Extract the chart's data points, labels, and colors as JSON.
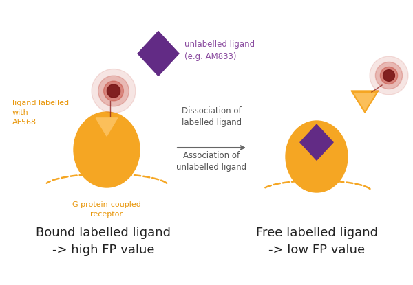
{
  "bg_color": "#ffffff",
  "orange_color": "#F5A623",
  "purple_color": "#622B85",
  "red_glow_color": "#C0392B",
  "text_orange": "#E8960A",
  "text_purple": "#8B4DA0",
  "text_gray": "#555555",
  "text_dark": "#222222",
  "dashed_line_color": "#F5A623",
  "arrow_color": "#666666",
  "arrow_text1": "Dissociation of\nlabelled ligand",
  "arrow_text2": "Association of\nunlabelled ligand",
  "label_bound": "Bound labelled ligand\n-> high FP value",
  "label_free": "Free labelled ligand\n-> low FP value",
  "label_receptor": "G protein-coupled\nreceptor",
  "label_ligand_labelled": "ligand labelled\nwith\nAF568",
  "label_unlabelled": "unlabelled ligand\n(e.g. AM833)"
}
